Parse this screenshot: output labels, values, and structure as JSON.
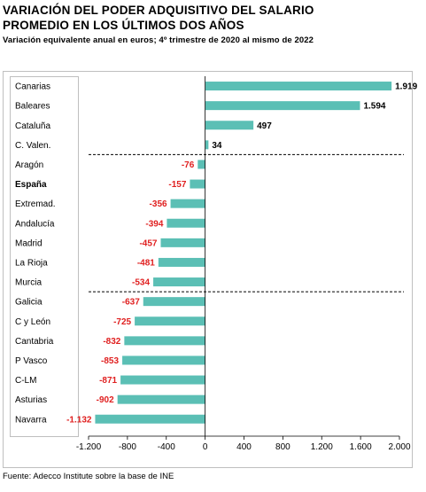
{
  "header": {
    "title_line1": "VARIACIÓN DEL PODER ADQUISITIVO DEL SALARIO",
    "title_line2": "PROMEDIO EN LOS ÚLTIMOS DOS AÑOS",
    "subtitle": "Variación equivalente anual en euros; 4º trimestre de 2020 al mismo de 2022"
  },
  "footer": {
    "source": "Fuente: Adecco Institute sobre la base de INE"
  },
  "colors": {
    "bar": "#5BBFB5",
    "positive_label": "#000000",
    "negative_label": "#E02020",
    "divider": "#000000"
  },
  "chart_data": {
    "type": "bar",
    "orientation": "horizontal",
    "categories": [
      "Canarias",
      "Baleares",
      "Cataluña",
      "C. Valen.",
      "Aragón",
      "España",
      "Extremad.",
      "Andalucía",
      "Madrid",
      "La Rioja",
      "Murcia",
      "Galicia",
      "C y León",
      "Cantabria",
      "P Vasco",
      "C-LM",
      "Asturias",
      "Navarra"
    ],
    "values": [
      1919,
      1594,
      497,
      34,
      -76,
      -157,
      -356,
      -394,
      -457,
      -481,
      -534,
      -637,
      -725,
      -832,
      -853,
      -871,
      -902,
      -1132
    ],
    "value_labels": [
      "1.919",
      "1.594",
      "497",
      "34",
      "-76",
      "-157",
      "-356",
      "-394",
      "-457",
      "-481",
      "-534",
      "-637",
      "-725",
      "-832",
      "-853",
      "-871",
      "-902",
      "-1.132"
    ],
    "bold_categories": [
      "España"
    ],
    "xlim": [
      -1200,
      2000
    ],
    "ticks": [
      -1200,
      -800,
      -400,
      0,
      400,
      800,
      1200,
      1600,
      2000
    ],
    "tick_labels": [
      "-1.200",
      "-800",
      "-400",
      "0",
      "400",
      "800",
      "1.200",
      "1.600",
      "2.000"
    ],
    "dividers_after_index": [
      3,
      10
    ],
    "grid": false,
    "legend": "none",
    "title": "",
    "xlabel": "",
    "ylabel": ""
  }
}
